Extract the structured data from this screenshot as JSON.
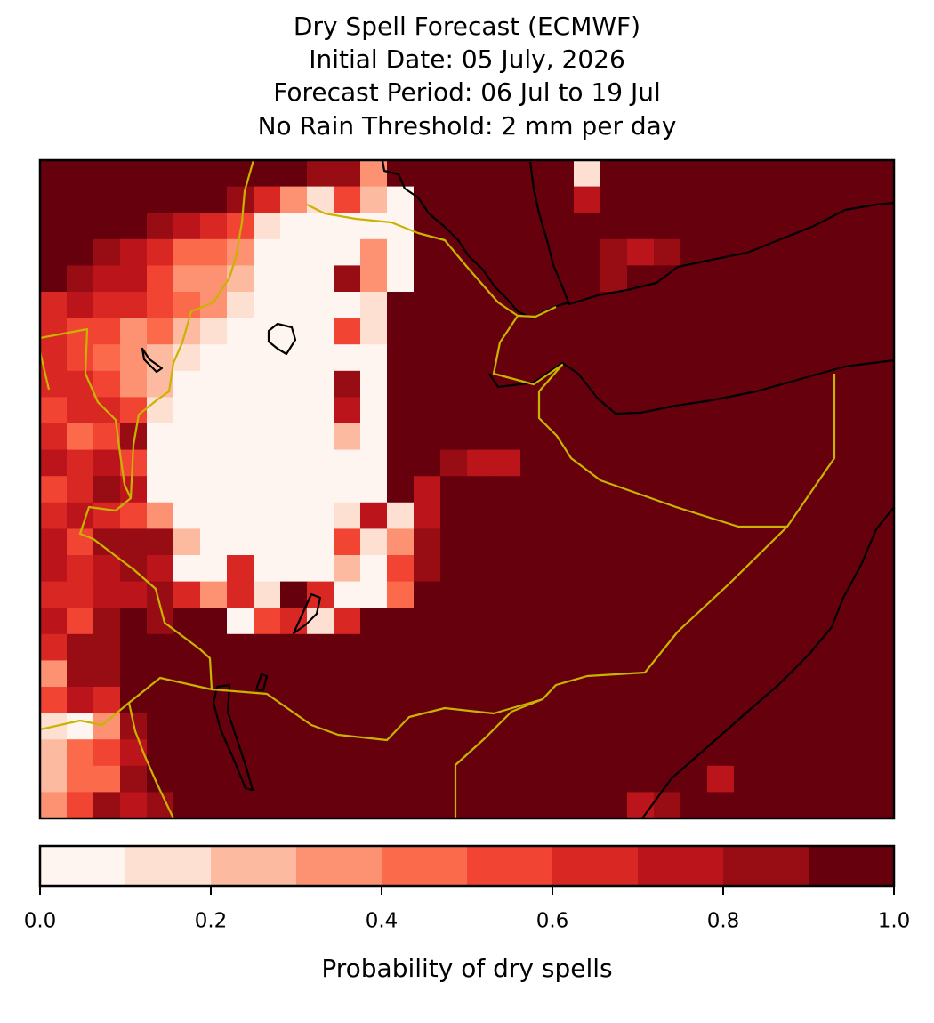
{
  "chart_data": {
    "type": "heatmap",
    "title": [
      "Dry Spell Forecast (ECMWF)",
      "Initial Date: 05 July, 2026",
      "Forecast Period: 06 Jul to 19 Jul",
      "No Rain Threshold: 2 mm per day"
    ],
    "colorbar_label": "Probability of dry spells",
    "clim": [
      0,
      1
    ],
    "cticks": [
      {
        "value": 0,
        "label": "0.0"
      },
      0.2,
      0.4,
      0.6,
      0.8,
      {
        "value": 1,
        "label": "1.0"
      }
    ],
    "colors": [
      "#fff5f0",
      "#fee0d2",
      "#fcbba1",
      "#fc9272",
      "#fb6a4a",
      "#f14432",
      "#d92723",
      "#bb141a",
      "#980c13",
      "#67000d"
    ],
    "values": [
      [
        0.95,
        0.95,
        0.95,
        0.95,
        0.95,
        0.95,
        0.95,
        0.95,
        0.95,
        0.95,
        0.85,
        0.85,
        0.35,
        0.95,
        0.95,
        0.95,
        0.95,
        0.95,
        0.95,
        0.95,
        0.15,
        0.95,
        0.95,
        0.95,
        0.95,
        0.95,
        0.95,
        0.95,
        0.95,
        0.95,
        0.95,
        0.95
      ],
      [
        0.95,
        0.95,
        0.95,
        0.95,
        0.95,
        0.95,
        0.95,
        0.85,
        0.65,
        0.35,
        0.15,
        0.55,
        0.25,
        0.05,
        0.95,
        0.95,
        0.95,
        0.95,
        0.95,
        0.95,
        0.75,
        0.95,
        0.95,
        0.95,
        0.95,
        0.95,
        0.95,
        0.95,
        0.95,
        0.95,
        0.95,
        0.95
      ],
      [
        0.95,
        0.95,
        0.95,
        0.95,
        0.85,
        0.75,
        0.65,
        0.55,
        0.15,
        0.05,
        0.05,
        0.05,
        0.05,
        0.05,
        0.95,
        0.95,
        0.95,
        0.95,
        0.95,
        0.95,
        0.95,
        0.95,
        0.95,
        0.95,
        0.95,
        0.95,
        0.95,
        0.95,
        0.95,
        0.95,
        0.95,
        0.95
      ],
      [
        0.95,
        0.95,
        0.85,
        0.75,
        0.65,
        0.45,
        0.45,
        0.35,
        0.05,
        0.05,
        0.05,
        0.05,
        0.35,
        0.05,
        0.95,
        0.95,
        0.95,
        0.95,
        0.95,
        0.95,
        0.95,
        0.85,
        0.75,
        0.85,
        0.95,
        0.95,
        0.95,
        0.95,
        0.95,
        0.95,
        0.95,
        0.95
      ],
      [
        0.95,
        0.85,
        0.75,
        0.75,
        0.55,
        0.35,
        0.35,
        0.25,
        0.05,
        0.05,
        0.05,
        0.85,
        0.35,
        0.05,
        0.95,
        0.95,
        0.95,
        0.95,
        0.95,
        0.95,
        0.95,
        0.85,
        0.95,
        0.95,
        0.95,
        0.95,
        0.95,
        0.95,
        0.95,
        0.95,
        0.95,
        0.95
      ],
      [
        0.65,
        0.75,
        0.65,
        0.65,
        0.55,
        0.45,
        0.35,
        0.15,
        0.05,
        0.05,
        0.05,
        0.05,
        0.15,
        0.95,
        0.95,
        0.95,
        0.95,
        0.95,
        0.95,
        0.95,
        0.95,
        0.95,
        0.95,
        0.95,
        0.95,
        0.95,
        0.95,
        0.95,
        0.95,
        0.95,
        0.95,
        0.95
      ],
      [
        0.65,
        0.55,
        0.55,
        0.35,
        0.45,
        0.25,
        0.15,
        0.05,
        0.05,
        0.05,
        0.05,
        0.55,
        0.15,
        0.95,
        0.95,
        0.95,
        0.95,
        0.95,
        0.95,
        0.95,
        0.95,
        0.95,
        0.95,
        0.95,
        0.95,
        0.95,
        0.95,
        0.95,
        0.95,
        0.95,
        0.95,
        0.95
      ],
      [
        0.65,
        0.55,
        0.45,
        0.35,
        0.25,
        0.15,
        0.05,
        0.05,
        0.05,
        0.05,
        0.05,
        0.05,
        0.05,
        0.95,
        0.95,
        0.95,
        0.95,
        0.95,
        0.95,
        0.95,
        0.95,
        0.95,
        0.95,
        0.95,
        0.95,
        0.95,
        0.95,
        0.95,
        0.95,
        0.95,
        0.95,
        0.95
      ],
      [
        0.65,
        0.65,
        0.55,
        0.35,
        0.25,
        0.05,
        0.05,
        0.05,
        0.05,
        0.05,
        0.05,
        0.85,
        0.05,
        0.95,
        0.95,
        0.95,
        0.95,
        0.95,
        0.95,
        0.95,
        0.95,
        0.95,
        0.95,
        0.95,
        0.95,
        0.95,
        0.95,
        0.95,
        0.95,
        0.95,
        0.95,
        0.95
      ],
      [
        0.55,
        0.65,
        0.65,
        0.55,
        0.15,
        0.05,
        0.05,
        0.05,
        0.05,
        0.05,
        0.05,
        0.75,
        0.05,
        0.95,
        0.95,
        0.95,
        0.95,
        0.95,
        0.95,
        0.95,
        0.95,
        0.95,
        0.95,
        0.95,
        0.95,
        0.95,
        0.95,
        0.95,
        0.95,
        0.95,
        0.95,
        0.95
      ],
      [
        0.65,
        0.45,
        0.55,
        0.85,
        0.05,
        0.05,
        0.05,
        0.05,
        0.05,
        0.05,
        0.05,
        0.25,
        0.05,
        0.95,
        0.95,
        0.95,
        0.95,
        0.95,
        0.95,
        0.95,
        0.95,
        0.95,
        0.95,
        0.95,
        0.95,
        0.95,
        0.95,
        0.95,
        0.95,
        0.95,
        0.95,
        0.95
      ],
      [
        0.75,
        0.65,
        0.75,
        0.55,
        0.05,
        0.05,
        0.05,
        0.05,
        0.05,
        0.05,
        0.05,
        0.05,
        0.05,
        0.95,
        0.95,
        0.85,
        0.75,
        0.75,
        0.95,
        0.95,
        0.95,
        0.95,
        0.95,
        0.95,
        0.95,
        0.95,
        0.95,
        0.95,
        0.95,
        0.95,
        0.95,
        0.95
      ],
      [
        0.55,
        0.65,
        0.85,
        0.75,
        0.05,
        0.05,
        0.05,
        0.05,
        0.05,
        0.05,
        0.05,
        0.05,
        0.05,
        0.95,
        0.75,
        0.95,
        0.95,
        0.95,
        0.95,
        0.95,
        0.95,
        0.95,
        0.95,
        0.95,
        0.95,
        0.95,
        0.95,
        0.95,
        0.95,
        0.95,
        0.95,
        0.95
      ],
      [
        0.65,
        0.75,
        0.65,
        0.55,
        0.35,
        0.05,
        0.05,
        0.05,
        0.05,
        0.05,
        0.05,
        0.15,
        0.75,
        0.15,
        0.75,
        0.95,
        0.95,
        0.95,
        0.95,
        0.95,
        0.95,
        0.95,
        0.95,
        0.95,
        0.95,
        0.95,
        0.95,
        0.95,
        0.95,
        0.95,
        0.95,
        0.95
      ],
      [
        0.75,
        0.55,
        0.85,
        0.85,
        0.85,
        0.25,
        0.05,
        0.05,
        0.05,
        0.05,
        0.05,
        0.55,
        0.15,
        0.35,
        0.85,
        0.95,
        0.95,
        0.95,
        0.95,
        0.95,
        0.95,
        0.95,
        0.95,
        0.95,
        0.95,
        0.95,
        0.95,
        0.95,
        0.95,
        0.95,
        0.95,
        0.95
      ],
      [
        0.75,
        0.65,
        0.75,
        0.85,
        0.75,
        0.05,
        0.05,
        0.65,
        0.05,
        0.05,
        0.05,
        0.25,
        0.05,
        0.55,
        0.85,
        0.95,
        0.95,
        0.95,
        0.95,
        0.95,
        0.95,
        0.95,
        0.95,
        0.95,
        0.95,
        0.95,
        0.95,
        0.95,
        0.95,
        0.95,
        0.95,
        0.95
      ],
      [
        0.65,
        0.65,
        0.75,
        0.75,
        0.85,
        0.65,
        0.35,
        0.65,
        0.15,
        0.95,
        0.65,
        0.05,
        0.05,
        0.45,
        0.95,
        0.95,
        0.95,
        0.95,
        0.95,
        0.95,
        0.95,
        0.95,
        0.95,
        0.95,
        0.95,
        0.95,
        0.95,
        0.95,
        0.95,
        0.95,
        0.95,
        0.95
      ],
      [
        0.75,
        0.55,
        0.85,
        0.95,
        0.85,
        0.95,
        0.95,
        0.05,
        0.55,
        0.65,
        0.15,
        0.65,
        0.95,
        0.95,
        0.95,
        0.95,
        0.95,
        0.95,
        0.95,
        0.95,
        0.95,
        0.95,
        0.95,
        0.95,
        0.95,
        0.95,
        0.95,
        0.95,
        0.95,
        0.95,
        0.95,
        0.95
      ],
      [
        0.65,
        0.85,
        0.85,
        0.95,
        0.95,
        0.95,
        0.95,
        0.95,
        0.95,
        0.95,
        0.95,
        0.95,
        0.95,
        0.95,
        0.95,
        0.95,
        0.95,
        0.95,
        0.95,
        0.95,
        0.95,
        0.95,
        0.95,
        0.95,
        0.95,
        0.95,
        0.95,
        0.95,
        0.95,
        0.95,
        0.95,
        0.95
      ],
      [
        0.35,
        0.85,
        0.85,
        0.95,
        0.95,
        0.95,
        0.95,
        0.95,
        0.95,
        0.95,
        0.95,
        0.95,
        0.95,
        0.95,
        0.95,
        0.95,
        0.95,
        0.95,
        0.95,
        0.95,
        0.95,
        0.95,
        0.95,
        0.95,
        0.95,
        0.95,
        0.95,
        0.95,
        0.95,
        0.95,
        0.95,
        0.95
      ],
      [
        0.55,
        0.75,
        0.65,
        0.95,
        0.95,
        0.95,
        0.95,
        0.95,
        0.95,
        0.95,
        0.95,
        0.95,
        0.95,
        0.95,
        0.95,
        0.95,
        0.95,
        0.95,
        0.95,
        0.95,
        0.95,
        0.95,
        0.95,
        0.95,
        0.95,
        0.95,
        0.95,
        0.95,
        0.95,
        0.95,
        0.95,
        0.95
      ],
      [
        0.15,
        0.05,
        0.35,
        0.85,
        0.95,
        0.95,
        0.95,
        0.95,
        0.95,
        0.95,
        0.95,
        0.95,
        0.95,
        0.95,
        0.95,
        0.95,
        0.95,
        0.95,
        0.95,
        0.95,
        0.95,
        0.95,
        0.95,
        0.95,
        0.95,
        0.95,
        0.95,
        0.95,
        0.95,
        0.95,
        0.95,
        0.95
      ],
      [
        0.25,
        0.45,
        0.55,
        0.75,
        0.95,
        0.95,
        0.95,
        0.95,
        0.95,
        0.95,
        0.95,
        0.95,
        0.95,
        0.95,
        0.95,
        0.95,
        0.95,
        0.95,
        0.95,
        0.95,
        0.95,
        0.95,
        0.95,
        0.95,
        0.95,
        0.95,
        0.95,
        0.95,
        0.95,
        0.95,
        0.95,
        0.95
      ],
      [
        0.25,
        0.45,
        0.45,
        0.85,
        0.95,
        0.95,
        0.95,
        0.95,
        0.95,
        0.95,
        0.95,
        0.95,
        0.95,
        0.95,
        0.95,
        0.95,
        0.95,
        0.95,
        0.95,
        0.95,
        0.95,
        0.95,
        0.95,
        0.95,
        0.95,
        0.75,
        0.95,
        0.95,
        0.95,
        0.95,
        0.95,
        0.95
      ],
      [
        0.35,
        0.55,
        0.85,
        0.75,
        0.85,
        0.95,
        0.95,
        0.95,
        0.95,
        0.95,
        0.95,
        0.95,
        0.95,
        0.95,
        0.95,
        0.95,
        0.95,
        0.95,
        0.95,
        0.95,
        0.95,
        0.95,
        0.75,
        0.85,
        0.95,
        0.95,
        0.95,
        0.95,
        0.95,
        0.95,
        0.95,
        0.95
      ]
    ]
  }
}
